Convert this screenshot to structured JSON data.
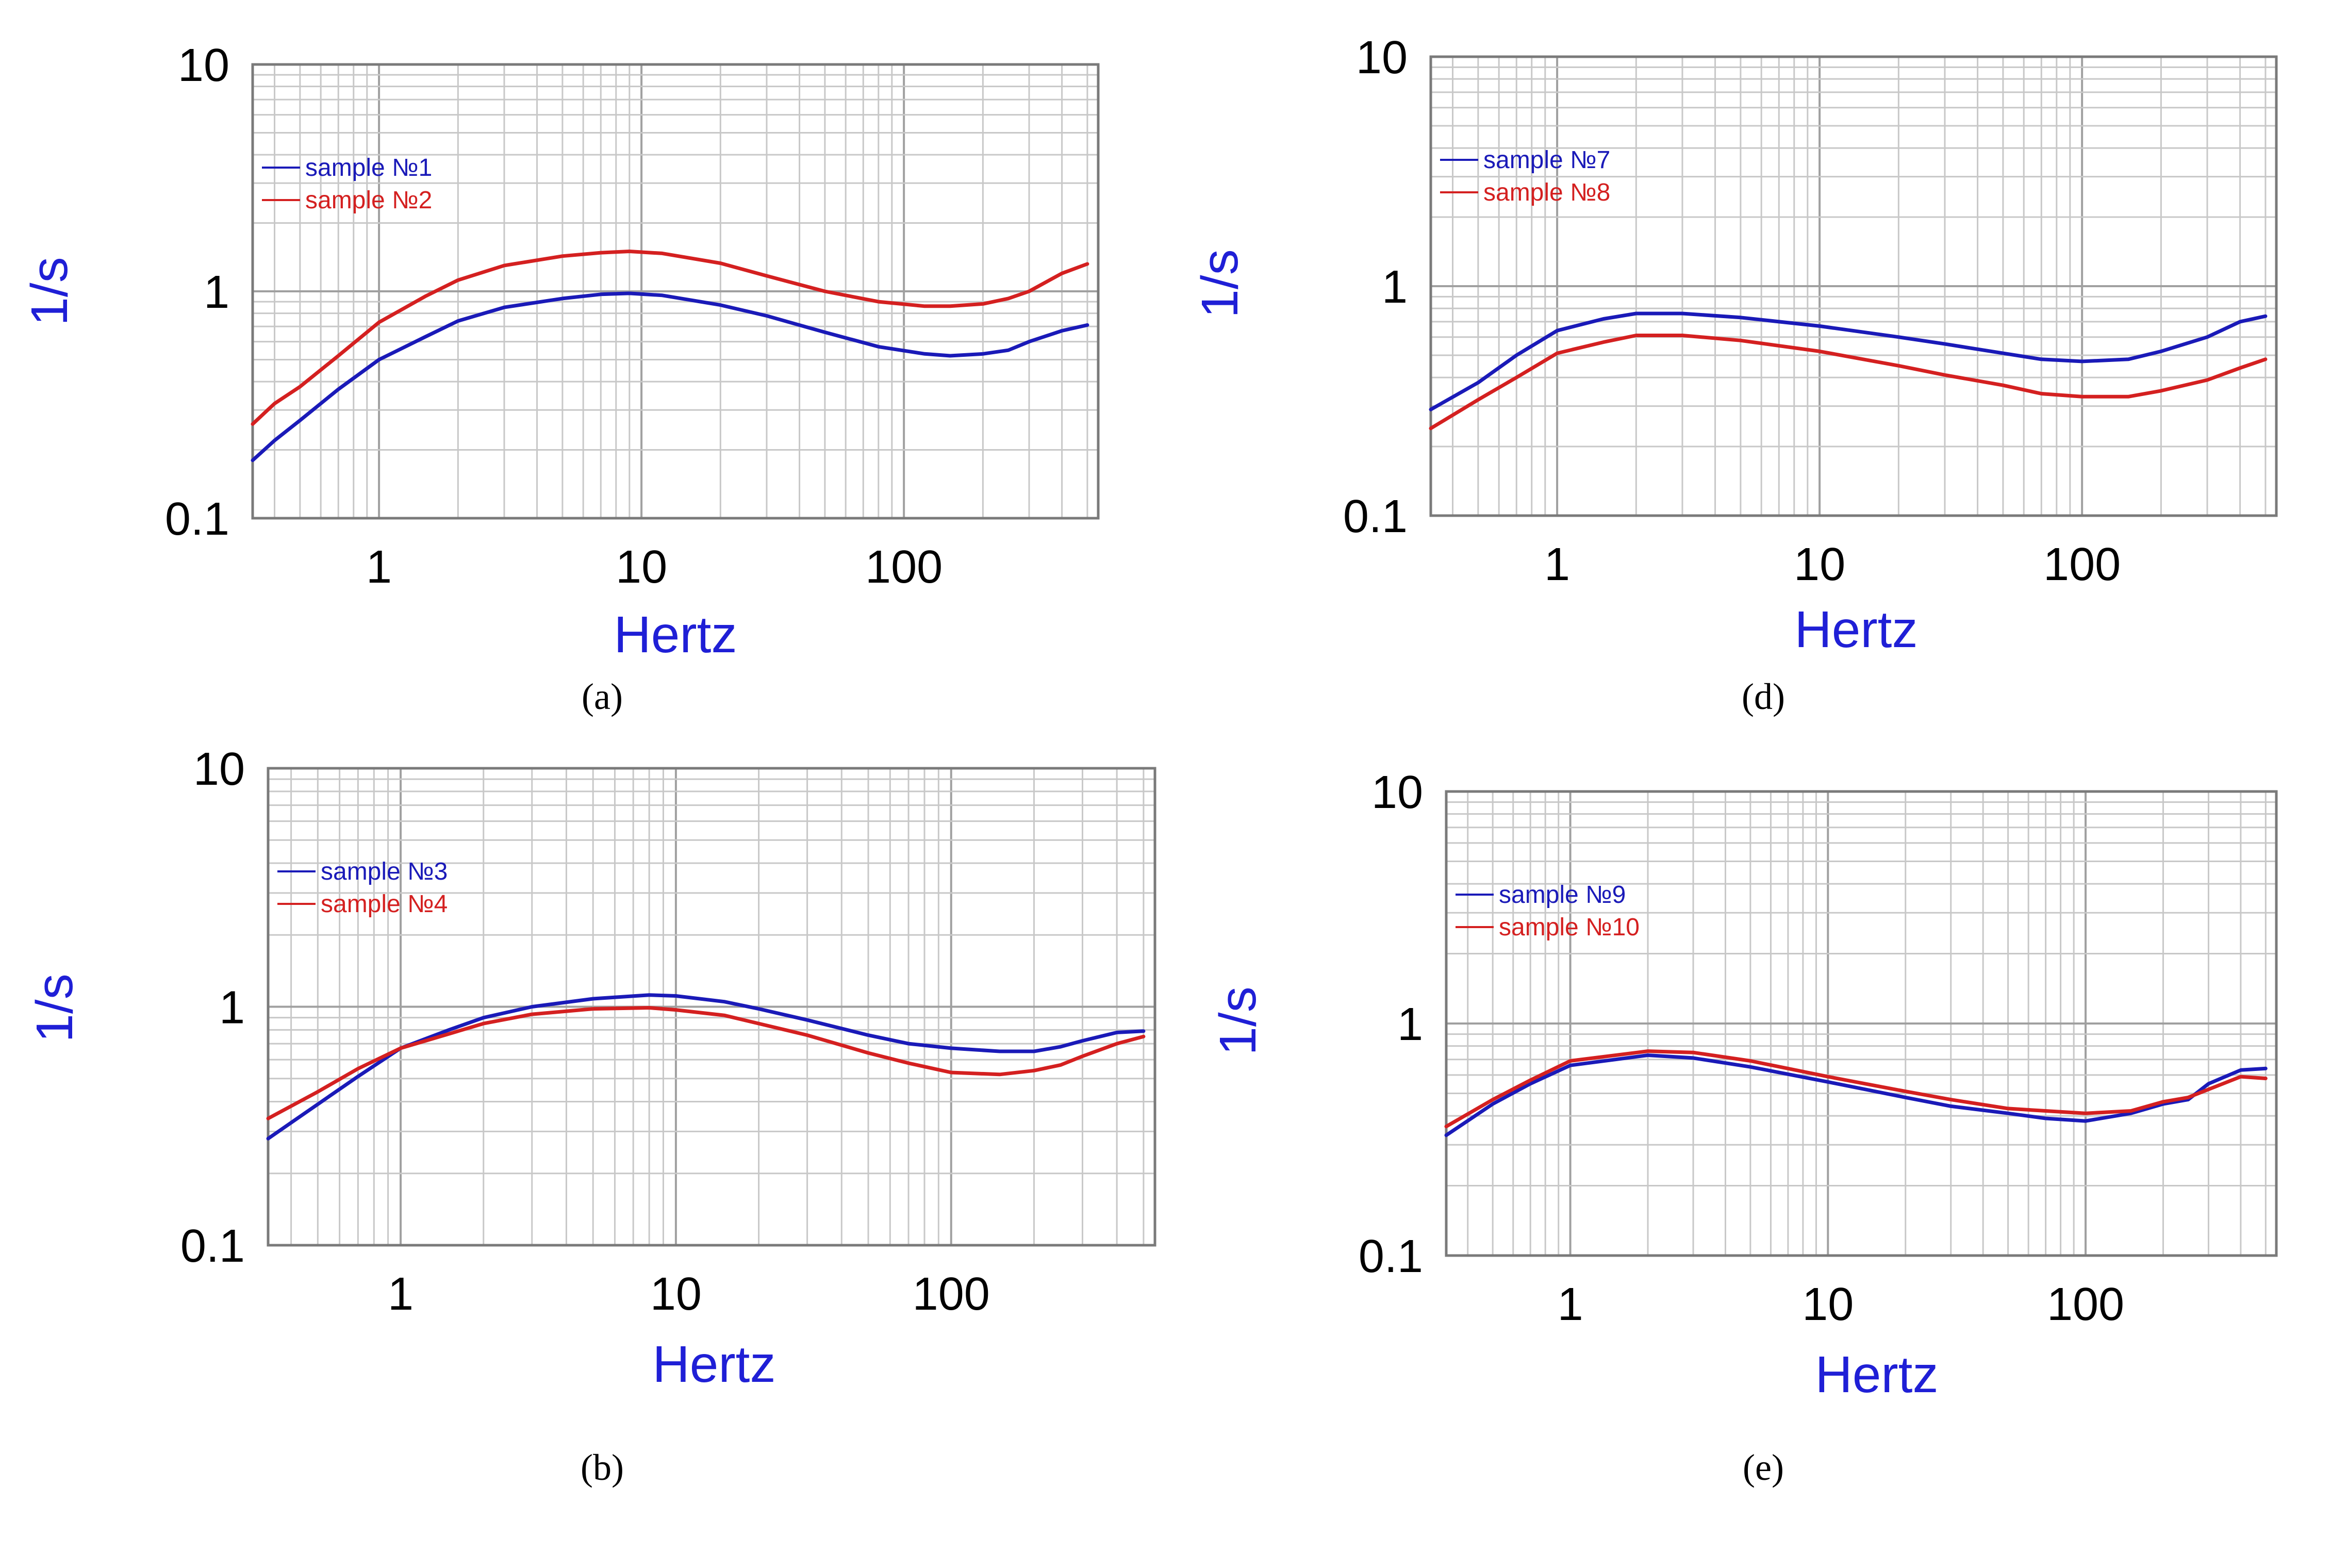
{
  "chart_data": [
    {
      "id": "a",
      "type": "line",
      "caption": "(a)",
      "xlabel": "Hertz",
      "ylabel": "1/s",
      "xscale": "log",
      "yscale": "log",
      "xlim": [
        0.33,
        550
      ],
      "ylim": [
        0.1,
        10
      ],
      "xticks": [
        {
          "value": 1,
          "label": "1"
        },
        {
          "value": 10,
          "label": "10"
        },
        {
          "value": 100,
          "label": "100"
        }
      ],
      "yticks": [
        {
          "value": 0.1,
          "label": "0.1"
        },
        {
          "value": 1,
          "label": "1"
        },
        {
          "value": 10,
          "label": "10"
        }
      ],
      "legend": "top-left",
      "grid": true,
      "series": [
        {
          "name": "sample №1",
          "color": "#1a1ab8",
          "x": [
            0.33,
            0.4,
            0.5,
            0.7,
            1,
            1.5,
            2,
            3,
            5,
            7,
            9,
            12,
            20,
            30,
            50,
            80,
            120,
            150,
            200,
            250,
            300,
            400,
            500
          ],
          "y": [
            0.18,
            0.22,
            0.27,
            0.37,
            0.5,
            0.63,
            0.74,
            0.85,
            0.93,
            0.97,
            0.98,
            0.96,
            0.87,
            0.78,
            0.66,
            0.57,
            0.53,
            0.52,
            0.53,
            0.55,
            0.6,
            0.67,
            0.71
          ]
        },
        {
          "name": "sample №2",
          "color": "#d42020",
          "x": [
            0.33,
            0.4,
            0.5,
            0.7,
            1,
            1.5,
            2,
            3,
            5,
            7,
            9,
            12,
            20,
            30,
            50,
            80,
            120,
            150,
            200,
            250,
            300,
            400,
            500
          ],
          "y": [
            0.26,
            0.32,
            0.38,
            0.52,
            0.73,
            0.95,
            1.12,
            1.3,
            1.43,
            1.48,
            1.5,
            1.47,
            1.33,
            1.17,
            1.0,
            0.9,
            0.86,
            0.86,
            0.88,
            0.93,
            1.0,
            1.2,
            1.32
          ]
        }
      ]
    },
    {
      "id": "d",
      "type": "line",
      "caption": "(d)",
      "xlabel": "Hertz",
      "ylabel": "1/s",
      "xscale": "log",
      "yscale": "log",
      "xlim": [
        0.33,
        550
      ],
      "ylim": [
        0.1,
        10
      ],
      "xticks": [
        {
          "value": 1,
          "label": "1"
        },
        {
          "value": 10,
          "label": "10"
        },
        {
          "value": 100,
          "label": "100"
        }
      ],
      "yticks": [
        {
          "value": 0.1,
          "label": "0.1"
        },
        {
          "value": 1,
          "label": "1"
        },
        {
          "value": 10,
          "label": "10"
        }
      ],
      "legend": "top-left",
      "grid": true,
      "series": [
        {
          "name": "sample №7",
          "color": "#1a1ab8",
          "x": [
            0.33,
            0.5,
            0.7,
            1,
            1.5,
            2,
            3,
            5,
            10,
            20,
            30,
            50,
            70,
            100,
            150,
            200,
            300,
            400,
            500
          ],
          "y": [
            0.29,
            0.38,
            0.5,
            0.64,
            0.72,
            0.76,
            0.76,
            0.73,
            0.67,
            0.6,
            0.56,
            0.51,
            0.48,
            0.47,
            0.48,
            0.52,
            0.6,
            0.7,
            0.74
          ]
        },
        {
          "name": "sample №8",
          "color": "#d42020",
          "x": [
            0.33,
            0.5,
            0.7,
            1,
            1.5,
            2,
            3,
            5,
            10,
            20,
            30,
            50,
            70,
            100,
            150,
            200,
            300,
            400,
            500
          ],
          "y": [
            0.24,
            0.32,
            0.4,
            0.51,
            0.57,
            0.61,
            0.61,
            0.58,
            0.52,
            0.45,
            0.41,
            0.37,
            0.34,
            0.33,
            0.33,
            0.35,
            0.39,
            0.44,
            0.48
          ]
        }
      ]
    },
    {
      "id": "b",
      "type": "line",
      "caption": "(b)",
      "xlabel": "Hertz",
      "ylabel": "1/s",
      "xscale": "log",
      "yscale": "log",
      "xlim": [
        0.33,
        550
      ],
      "ylim": [
        0.1,
        10
      ],
      "xticks": [
        {
          "value": 1,
          "label": "1"
        },
        {
          "value": 10,
          "label": "10"
        },
        {
          "value": 100,
          "label": "100"
        }
      ],
      "yticks": [
        {
          "value": 0.1,
          "label": "0.1"
        },
        {
          "value": 1,
          "label": "1"
        },
        {
          "value": 10,
          "label": "10"
        }
      ],
      "legend": "top-left",
      "grid": true,
      "series": [
        {
          "name": "sample №3",
          "color": "#1a1ab8",
          "x": [
            0.33,
            0.5,
            0.7,
            1,
            1.5,
            2,
            3,
            5,
            8,
            10,
            15,
            20,
            30,
            50,
            70,
            100,
            150,
            200,
            250,
            300,
            400,
            500
          ],
          "y": [
            0.28,
            0.39,
            0.51,
            0.67,
            0.8,
            0.9,
            1.0,
            1.08,
            1.12,
            1.11,
            1.05,
            0.98,
            0.88,
            0.76,
            0.7,
            0.67,
            0.65,
            0.65,
            0.68,
            0.72,
            0.78,
            0.79
          ]
        },
        {
          "name": "sample №4",
          "color": "#d42020",
          "x": [
            0.33,
            0.5,
            0.7,
            1,
            1.5,
            2,
            3,
            5,
            8,
            10,
            15,
            20,
            30,
            50,
            70,
            100,
            150,
            200,
            250,
            300,
            400,
            500
          ],
          "y": [
            0.34,
            0.44,
            0.55,
            0.67,
            0.77,
            0.85,
            0.93,
            0.98,
            0.99,
            0.97,
            0.92,
            0.85,
            0.76,
            0.64,
            0.58,
            0.53,
            0.52,
            0.54,
            0.57,
            0.62,
            0.7,
            0.75
          ]
        }
      ]
    },
    {
      "id": "e",
      "type": "line",
      "caption": "(e)",
      "xlabel": "Hertz",
      "ylabel": "1/s",
      "xscale": "log",
      "yscale": "log",
      "xlim": [
        0.33,
        550
      ],
      "ylim": [
        0.1,
        10
      ],
      "xticks": [
        {
          "value": 1,
          "label": "1"
        },
        {
          "value": 10,
          "label": "10"
        },
        {
          "value": 100,
          "label": "100"
        }
      ],
      "yticks": [
        {
          "value": 0.1,
          "label": "0.1"
        },
        {
          "value": 1,
          "label": "1"
        },
        {
          "value": 10,
          "label": "10"
        }
      ],
      "legend": "top-left",
      "grid": true,
      "series": [
        {
          "name": "sample №9",
          "color": "#1a1ab8",
          "x": [
            0.33,
            0.5,
            0.7,
            1,
            1.5,
            2,
            3,
            5,
            10,
            20,
            30,
            50,
            70,
            100,
            150,
            200,
            250,
            300,
            400,
            500
          ],
          "y": [
            0.33,
            0.45,
            0.55,
            0.66,
            0.7,
            0.73,
            0.71,
            0.65,
            0.56,
            0.48,
            0.44,
            0.41,
            0.39,
            0.38,
            0.41,
            0.45,
            0.47,
            0.55,
            0.63,
            0.64
          ]
        },
        {
          "name": "sample №10",
          "color": "#d42020",
          "x": [
            0.33,
            0.5,
            0.7,
            1,
            1.5,
            2,
            3,
            5,
            10,
            20,
            30,
            50,
            70,
            100,
            150,
            200,
            250,
            300,
            400,
            500
          ],
          "y": [
            0.36,
            0.47,
            0.57,
            0.69,
            0.73,
            0.76,
            0.75,
            0.69,
            0.59,
            0.51,
            0.47,
            0.43,
            0.42,
            0.41,
            0.42,
            0.46,
            0.48,
            0.52,
            0.59,
            0.58
          ]
        }
      ]
    }
  ]
}
